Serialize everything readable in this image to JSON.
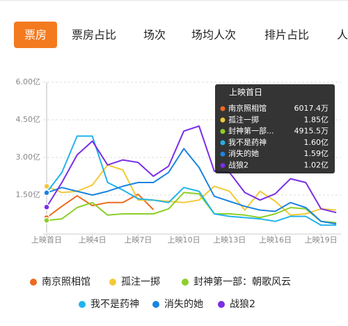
{
  "tabs": [
    "票房",
    "票房占比",
    "场次",
    "场均人次",
    "排片占比",
    "人"
  ],
  "active_tab": 0,
  "chart_data": {
    "type": "line",
    "categories": [
      "上映首日",
      null,
      null,
      "上映4日",
      null,
      null,
      "上映7日",
      null,
      null,
      "上映10日",
      null,
      null,
      "上映13日",
      null,
      null,
      "上映16日",
      null,
      null,
      "上映19日",
      null
    ],
    "ylim": [
      0,
      6
    ],
    "yticks": [
      {
        "value": 1.5,
        "label": "1.50亿"
      },
      {
        "value": 3,
        "label": "3.00亿"
      },
      {
        "value": 4.5,
        "label": "4.50亿"
      },
      {
        "value": 6,
        "label": "6.00亿"
      }
    ],
    "grid": true,
    "series": [
      {
        "name": "南京照相馆",
        "color": "#ee6a1e",
        "values": [
          0.6,
          1.05,
          1.47,
          1.08,
          1.2,
          1.2,
          1.53,
          0.92,
          null,
          null,
          null,
          null,
          null,
          null,
          null,
          null,
          null,
          null,
          null,
          null
        ]
      },
      {
        "name": "孤注一掷",
        "color": "#f4c936",
        "values": [
          1.85,
          1.6,
          1.65,
          1.9,
          2.7,
          2.5,
          1.3,
          1.3,
          1.25,
          1.2,
          1.3,
          1.85,
          1.65,
          0.9,
          1.65,
          1.25,
          0.7,
          0.75,
          0.95,
          0.9
        ]
      },
      {
        "name": "封神第一部：朝歌风云",
        "color": "#8ccf28",
        "values": [
          0.49,
          0.55,
          1.0,
          1.2,
          0.7,
          0.75,
          0.75,
          0.75,
          0.95,
          1.6,
          1.55,
          0.75,
          0.75,
          0.7,
          0.6,
          0.75,
          1.0,
          0.95,
          0.45,
          0.4
        ]
      },
      {
        "name": "我不是药神",
        "color": "#22b3ec",
        "values": [
          1.6,
          2.4,
          3.85,
          3.85,
          2.0,
          1.7,
          1.35,
          1.3,
          1.2,
          1.8,
          1.65,
          0.75,
          0.65,
          0.6,
          0.55,
          0.45,
          0.65,
          0.65,
          0.3,
          0.3
        ]
      },
      {
        "name": "消失的她",
        "color": "#1a84e0",
        "values": [
          1.59,
          1.8,
          1.65,
          1.5,
          1.65,
          1.85,
          2.0,
          2.0,
          2.4,
          3.35,
          2.6,
          1.45,
          1.25,
          1.05,
          0.9,
          0.85,
          1.2,
          1.0,
          0.45,
          0.35
        ]
      },
      {
        "name": "战狼2",
        "color": "#7a2ee6",
        "values": [
          1.02,
          2.0,
          3.1,
          3.65,
          2.7,
          2.9,
          2.8,
          2.25,
          2.65,
          4.05,
          4.25,
          2.45,
          2.4,
          1.6,
          1.3,
          1.55,
          2.15,
          2.0,
          0.95,
          0.8
        ]
      }
    ],
    "tooltip": {
      "title": "上映首日",
      "items": [
        {
          "name": "南京照相馆",
          "value": "6017.4万"
        },
        {
          "name": "孤注一掷",
          "value": "1.85亿"
        },
        {
          "name": "封神第一部...",
          "value": "4915.5万"
        },
        {
          "name": "我不是药神",
          "value": "1.60亿"
        },
        {
          "name": "消失的她",
          "value": "1.59亿"
        },
        {
          "name": "战狼2",
          "value": "1.02亿"
        }
      ]
    }
  }
}
